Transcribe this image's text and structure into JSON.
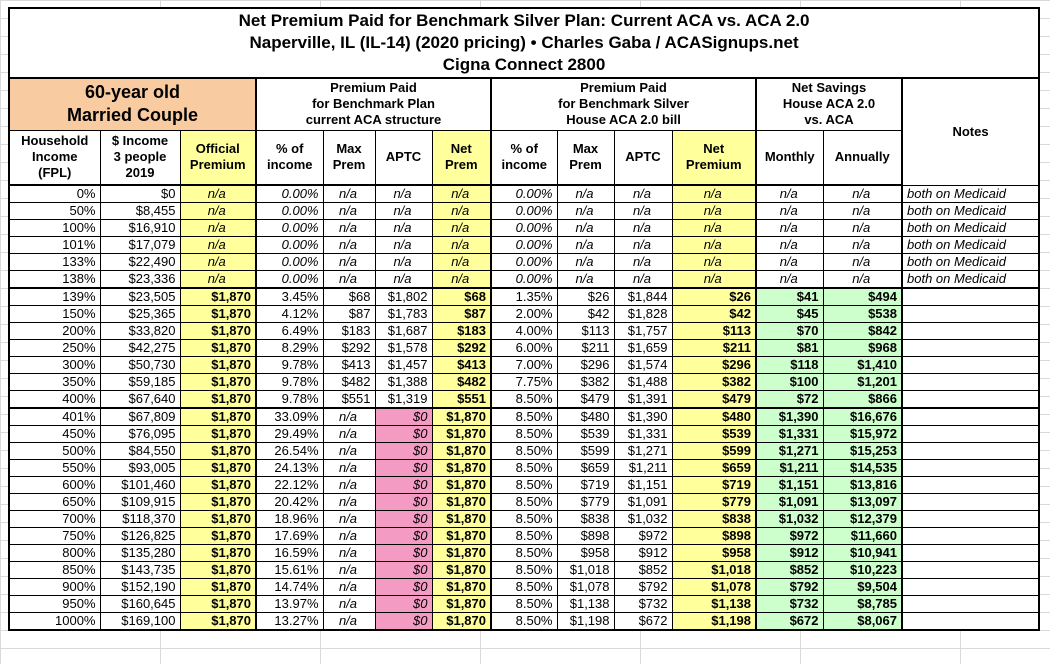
{
  "title": {
    "text": "Net Premium Paid for Benchmark Silver Plan: Current ACA vs. ACA 2.0\nNaperville, IL (IL-14) (2020 pricing) • Charles Gaba / ACASignups.net\nCigna Connect 2800"
  },
  "header": {
    "demographic": "60-year old\nMarried Couple",
    "group_current_aca": "Premium Paid\nfor Benchmark Plan\ncurrent ACA structure",
    "group_aca2": "Premium Paid\nfor Benchmark Silver\nHouse ACA 2.0 bill",
    "group_savings": "Net Savings\nHouse ACA 2.0\nvs. ACA",
    "notes_label": "Notes"
  },
  "table": {
    "columns": [
      {
        "key": "fpl",
        "label": "Household\nIncome\n(FPL)"
      },
      {
        "key": "income",
        "label": "$ Income\n3 people\n2019"
      },
      {
        "key": "official_premium",
        "label": "Official\nPremium"
      },
      {
        "key": "aca_pct_income",
        "label": "% of\nincome"
      },
      {
        "key": "aca_max_prem",
        "label": "Max\nPrem"
      },
      {
        "key": "aca_aptc",
        "label": "APTC"
      },
      {
        "key": "aca_net_prem",
        "label": "Net\nPrem"
      },
      {
        "key": "aca2_pct_income",
        "label": "% of\nincome"
      },
      {
        "key": "aca2_max_prem",
        "label": "Max\nPrem"
      },
      {
        "key": "aca2_aptc",
        "label": "APTC"
      },
      {
        "key": "aca2_net_premium",
        "label": "Net\nPremium"
      },
      {
        "key": "savings_monthly",
        "label": "Monthly"
      },
      {
        "key": "savings_annually",
        "label": "Annually"
      },
      {
        "key": "notes",
        "label": "Notes"
      }
    ]
  },
  "colors": {
    "highlight_yellow": "#FFFF9C",
    "highlight_orange": "#F8CBA0",
    "highlight_pink": "#F49BC4",
    "highlight_green": "#CCFFCC",
    "border": "#000000"
  },
  "chart_data": {
    "type": "table",
    "title": "Net Premium Paid for Benchmark Silver Plan: Current ACA vs. ACA 2.0 — Naperville, IL (IL-14) (2020 pricing) • Charles Gaba / ACASignups.net — Cigna Connect 2800",
    "subject": "60-year old Married Couple",
    "column_groups": [
      "Premium Paid for Benchmark Plan current ACA structure",
      "Premium Paid for Benchmark Silver House ACA 2.0 bill",
      "Net Savings House ACA 2.0 vs. ACA"
    ],
    "columns": [
      "Household Income (FPL)",
      "$ Income 3 people 2019",
      "Official Premium",
      "ACA % of income",
      "ACA Max Prem",
      "ACA APTC",
      "ACA Net Prem",
      "ACA2 % of income",
      "ACA2 Max Prem",
      "ACA2 APTC",
      "ACA2 Net Premium",
      "Savings Monthly",
      "Savings Annually",
      "Notes"
    ],
    "rows": [
      {
        "group": "medicaid",
        "cells": [
          "0%",
          "$0",
          "n/a",
          "0.00%",
          "n/a",
          "n/a",
          "n/a",
          "0.00%",
          "n/a",
          "n/a",
          "n/a",
          "n/a",
          "n/a",
          "both on Medicaid"
        ]
      },
      {
        "group": "medicaid",
        "cells": [
          "50%",
          "$8,455",
          "n/a",
          "0.00%",
          "n/a",
          "n/a",
          "n/a",
          "0.00%",
          "n/a",
          "n/a",
          "n/a",
          "n/a",
          "n/a",
          "both on Medicaid"
        ]
      },
      {
        "group": "medicaid",
        "cells": [
          "100%",
          "$16,910",
          "n/a",
          "0.00%",
          "n/a",
          "n/a",
          "n/a",
          "0.00%",
          "n/a",
          "n/a",
          "n/a",
          "n/a",
          "n/a",
          "both on Medicaid"
        ]
      },
      {
        "group": "medicaid",
        "cells": [
          "101%",
          "$17,079",
          "n/a",
          "0.00%",
          "n/a",
          "n/a",
          "n/a",
          "0.00%",
          "n/a",
          "n/a",
          "n/a",
          "n/a",
          "n/a",
          "both on Medicaid"
        ]
      },
      {
        "group": "medicaid",
        "cells": [
          "133%",
          "$22,490",
          "n/a",
          "0.00%",
          "n/a",
          "n/a",
          "n/a",
          "0.00%",
          "n/a",
          "n/a",
          "n/a",
          "n/a",
          "n/a",
          "both on Medicaid"
        ]
      },
      {
        "group": "medicaid",
        "cells": [
          "138%",
          "$23,336",
          "n/a",
          "0.00%",
          "n/a",
          "n/a",
          "n/a",
          "0.00%",
          "n/a",
          "n/a",
          "n/a",
          "n/a",
          "n/a",
          "both on Medicaid"
        ]
      },
      {
        "group": "mid",
        "cells": [
          "139%",
          "$23,505",
          "$1,870",
          "3.45%",
          "$68",
          "$1,802",
          "$68",
          "1.35%",
          "$26",
          "$1,844",
          "$26",
          "$41",
          "$494",
          ""
        ]
      },
      {
        "group": "mid",
        "cells": [
          "150%",
          "$25,365",
          "$1,870",
          "4.12%",
          "$87",
          "$1,783",
          "$87",
          "2.00%",
          "$42",
          "$1,828",
          "$42",
          "$45",
          "$538",
          ""
        ]
      },
      {
        "group": "mid",
        "cells": [
          "200%",
          "$33,820",
          "$1,870",
          "6.49%",
          "$183",
          "$1,687",
          "$183",
          "4.00%",
          "$113",
          "$1,757",
          "$113",
          "$70",
          "$842",
          ""
        ]
      },
      {
        "group": "mid",
        "cells": [
          "250%",
          "$42,275",
          "$1,870",
          "8.29%",
          "$292",
          "$1,578",
          "$292",
          "6.00%",
          "$211",
          "$1,659",
          "$211",
          "$81",
          "$968",
          ""
        ]
      },
      {
        "group": "mid",
        "cells": [
          "300%",
          "$50,730",
          "$1,870",
          "9.78%",
          "$413",
          "$1,457",
          "$413",
          "7.00%",
          "$296",
          "$1,574",
          "$296",
          "$118",
          "$1,410",
          ""
        ]
      },
      {
        "group": "mid",
        "cells": [
          "350%",
          "$59,185",
          "$1,870",
          "9.78%",
          "$482",
          "$1,388",
          "$482",
          "7.75%",
          "$382",
          "$1,488",
          "$382",
          "$100",
          "$1,201",
          ""
        ]
      },
      {
        "group": "mid",
        "cells": [
          "400%",
          "$67,640",
          "$1,870",
          "9.78%",
          "$551",
          "$1,319",
          "$551",
          "8.50%",
          "$479",
          "$1,391",
          "$479",
          "$72",
          "$866",
          ""
        ]
      },
      {
        "group": "high",
        "cells": [
          "401%",
          "$67,809",
          "$1,870",
          "33.09%",
          "n/a",
          "$0",
          "$1,870",
          "8.50%",
          "$480",
          "$1,390",
          "$480",
          "$1,390",
          "$16,676",
          ""
        ]
      },
      {
        "group": "high",
        "cells": [
          "450%",
          "$76,095",
          "$1,870",
          "29.49%",
          "n/a",
          "$0",
          "$1,870",
          "8.50%",
          "$539",
          "$1,331",
          "$539",
          "$1,331",
          "$15,972",
          ""
        ]
      },
      {
        "group": "high",
        "cells": [
          "500%",
          "$84,550",
          "$1,870",
          "26.54%",
          "n/a",
          "$0",
          "$1,870",
          "8.50%",
          "$599",
          "$1,271",
          "$599",
          "$1,271",
          "$15,253",
          ""
        ]
      },
      {
        "group": "high",
        "cells": [
          "550%",
          "$93,005",
          "$1,870",
          "24.13%",
          "n/a",
          "$0",
          "$1,870",
          "8.50%",
          "$659",
          "$1,211",
          "$659",
          "$1,211",
          "$14,535",
          ""
        ]
      },
      {
        "group": "high",
        "cells": [
          "600%",
          "$101,460",
          "$1,870",
          "22.12%",
          "n/a",
          "$0",
          "$1,870",
          "8.50%",
          "$719",
          "$1,151",
          "$719",
          "$1,151",
          "$13,816",
          ""
        ]
      },
      {
        "group": "high",
        "cells": [
          "650%",
          "$109,915",
          "$1,870",
          "20.42%",
          "n/a",
          "$0",
          "$1,870",
          "8.50%",
          "$779",
          "$1,091",
          "$779",
          "$1,091",
          "$13,097",
          ""
        ]
      },
      {
        "group": "high",
        "cells": [
          "700%",
          "$118,370",
          "$1,870",
          "18.96%",
          "n/a",
          "$0",
          "$1,870",
          "8.50%",
          "$838",
          "$1,032",
          "$838",
          "$1,032",
          "$12,379",
          ""
        ]
      },
      {
        "group": "high",
        "cells": [
          "750%",
          "$126,825",
          "$1,870",
          "17.69%",
          "n/a",
          "$0",
          "$1,870",
          "8.50%",
          "$898",
          "$972",
          "$898",
          "$972",
          "$11,660",
          ""
        ]
      },
      {
        "group": "high",
        "cells": [
          "800%",
          "$135,280",
          "$1,870",
          "16.59%",
          "n/a",
          "$0",
          "$1,870",
          "8.50%",
          "$958",
          "$912",
          "$958",
          "$912",
          "$10,941",
          ""
        ]
      },
      {
        "group": "high",
        "cells": [
          "850%",
          "$143,735",
          "$1,870",
          "15.61%",
          "n/a",
          "$0",
          "$1,870",
          "8.50%",
          "$1,018",
          "$852",
          "$1,018",
          "$852",
          "$10,223",
          ""
        ]
      },
      {
        "group": "high",
        "cells": [
          "900%",
          "$152,190",
          "$1,870",
          "14.74%",
          "n/a",
          "$0",
          "$1,870",
          "8.50%",
          "$1,078",
          "$792",
          "$1,078",
          "$792",
          "$9,504",
          ""
        ]
      },
      {
        "group": "high",
        "cells": [
          "950%",
          "$160,645",
          "$1,870",
          "13.97%",
          "n/a",
          "$0",
          "$1,870",
          "8.50%",
          "$1,138",
          "$732",
          "$1,138",
          "$732",
          "$8,785",
          ""
        ]
      },
      {
        "group": "high",
        "cells": [
          "1000%",
          "$169,100",
          "$1,870",
          "13.27%",
          "n/a",
          "$0",
          "$1,870",
          "8.50%",
          "$1,198",
          "$672",
          "$1,198",
          "$672",
          "$8,067",
          ""
        ]
      }
    ]
  }
}
